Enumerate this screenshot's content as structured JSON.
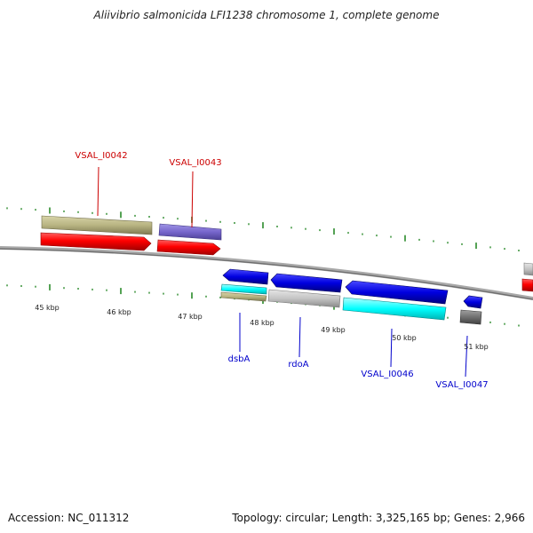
{
  "title": "Aliivibrio salmonicida LFI1238 chromosome 1, complete genome",
  "footer": {
    "accession": "Accession: NC_011312",
    "topology": "Topology: circular; Length: 3,325,165 bp; Genes: 2,966"
  },
  "scale_unit": "kbp",
  "kbp_labels": [
    "45 kbp",
    "46 kbp",
    "47 kbp",
    "48 kbp",
    "49 kbp",
    "50 kbp",
    "51 kbp"
  ],
  "colors": {
    "backbone": "#808080",
    "tick": "#2a8a2a",
    "label_top": "#cc0000",
    "label_bottom": "#0000cc",
    "red_arrow": "#ff0000",
    "olive": "#b8b482",
    "purple": "#7766cc",
    "blue": "#0000e0",
    "cyan": "#00ffff",
    "light_gray": "#c4c4c4",
    "dark_gray": "#707070"
  },
  "genes_top": [
    {
      "id": "VSAL_I0042",
      "label": "VSAL_I0042"
    },
    {
      "id": "VSAL_I0043",
      "label": "VSAL_I0043"
    }
  ],
  "genes_bottom": [
    {
      "id": "dsbA",
      "label": "dsbA"
    },
    {
      "id": "rdoA",
      "label": "rdoA"
    },
    {
      "id": "VSAL_I0046",
      "label": "VSAL_I0046"
    },
    {
      "id": "VSAL_I0047",
      "label": "VSAL_I0047"
    }
  ]
}
